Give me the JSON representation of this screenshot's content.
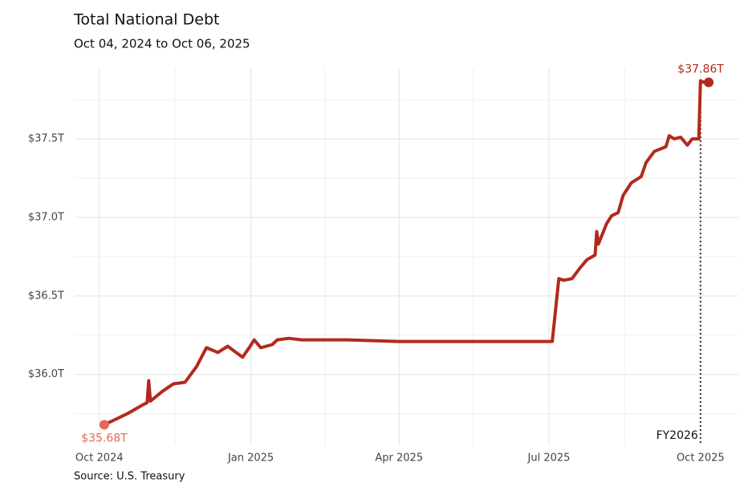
{
  "chart_data": {
    "type": "line",
    "title": "Total National Debt",
    "subtitle": "Oct 04, 2024 to Oct 06, 2025",
    "source": "Source: U.S. Treasury",
    "series": [
      {
        "name": "Total National Debt",
        "color": "#b22a1d",
        "x": [
          "2024-10-04",
          "2024-10-10",
          "2024-10-18",
          "2024-10-28",
          "2024-10-30",
          "2024-10-31",
          "2024-11-01",
          "2024-11-08",
          "2024-11-15",
          "2024-11-22",
          "2024-11-29",
          "2024-12-05",
          "2024-12-12",
          "2024-12-18",
          "2024-12-23",
          "2024-12-27",
          "2024-12-31",
          "2025-01-03",
          "2025-01-07",
          "2025-01-14",
          "2025-01-17",
          "2025-01-24",
          "2025-02-01",
          "2025-03-01",
          "2025-04-01",
          "2025-05-01",
          "2025-06-01",
          "2025-07-01",
          "2025-07-03",
          "2025-07-07",
          "2025-07-10",
          "2025-07-15",
          "2025-07-20",
          "2025-07-24",
          "2025-07-29",
          "2025-07-30",
          "2025-07-31",
          "2025-08-05",
          "2025-08-08",
          "2025-08-12",
          "2025-08-15",
          "2025-08-20",
          "2025-08-26",
          "2025-08-29",
          "2025-09-03",
          "2025-09-10",
          "2025-09-12",
          "2025-09-15",
          "2025-09-19",
          "2025-09-23",
          "2025-09-26",
          "2025-09-30",
          "2025-10-01",
          "2025-10-03",
          "2025-10-06"
        ],
        "values": [
          35.68,
          35.71,
          35.75,
          35.81,
          35.82,
          35.96,
          35.83,
          35.89,
          35.94,
          35.95,
          36.05,
          36.17,
          36.14,
          36.18,
          36.14,
          36.11,
          36.17,
          36.22,
          36.17,
          36.19,
          36.22,
          36.23,
          36.22,
          36.22,
          36.21,
          36.21,
          36.21,
          36.21,
          36.21,
          36.61,
          36.6,
          36.61,
          36.68,
          36.73,
          36.76,
          36.91,
          36.83,
          36.96,
          37.01,
          37.03,
          37.14,
          37.22,
          37.26,
          37.35,
          37.42,
          37.45,
          37.52,
          37.5,
          37.51,
          37.46,
          37.5,
          37.5,
          37.87,
          37.86,
          37.86
        ],
        "value_labels": [
          "$35.68T",
          null,
          null,
          null,
          null,
          null,
          null,
          null,
          null,
          null,
          null,
          null,
          null,
          null,
          null,
          null,
          null,
          null,
          null,
          null,
          null,
          null,
          null,
          null,
          null,
          null,
          null,
          null,
          null,
          null,
          null,
          null,
          null,
          null,
          null,
          null,
          null,
          null,
          null,
          null,
          null,
          null,
          null,
          null,
          null,
          null,
          null,
          null,
          null,
          null,
          null,
          null,
          null,
          null,
          "$37.86T"
        ],
        "marker_colors": [
          "#e8675b",
          "#b22a1d"
        ]
      }
    ],
    "annotations": [
      {
        "x": "2025-10-01",
        "label": "FY2026"
      }
    ],
    "xlim": [
      "2024-09-16",
      "2025-10-24"
    ],
    "xticks": [
      {
        "value": "2024-10-01",
        "label": "Oct 2024"
      },
      {
        "value": "2025-01-01",
        "label": "Jan 2025"
      },
      {
        "value": "2025-04-01",
        "label": "Apr 2025"
      },
      {
        "value": "2025-07-01",
        "label": "Jul 2025"
      },
      {
        "value": "2025-10-01",
        "label": "Oct 2025"
      }
    ],
    "xminorticks": [
      "2024-11-16",
      "2025-02-15",
      "2025-05-16",
      "2025-08-16"
    ],
    "ylim": [
      35.6,
      37.95
    ],
    "yticks": [
      {
        "value": 36,
        "label": "$36.0T"
      },
      {
        "value": 36.5,
        "label": "$36.5T"
      },
      {
        "value": 37,
        "label": "$37.0T"
      },
      {
        "value": 37.5,
        "label": "$37.5T"
      }
    ],
    "yminorticks": [
      35.75,
      36.25,
      36.75,
      37.25,
      37.75
    ],
    "grid": true
  }
}
